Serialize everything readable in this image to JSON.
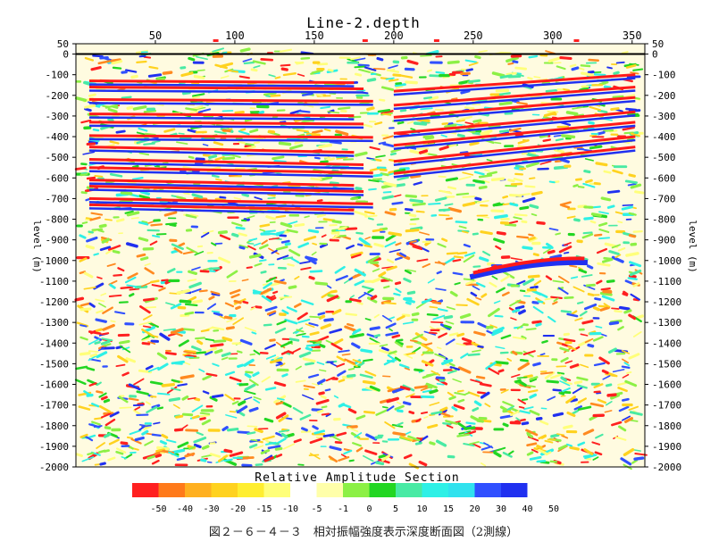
{
  "chart_data": {
    "type": "heatmap",
    "title": "Line-2.depth",
    "ylabel": "level (m)",
    "section_label": "Relative Amplitude Section",
    "caption": "図２－６－４－３　相対振幅強度表示深度断面図（2測線）",
    "x_ticks": [
      "50",
      "100",
      "150",
      "200",
      "250",
      "300",
      "350"
    ],
    "x_range": [
      0,
      358
    ],
    "y_ticks": [
      "50",
      "0",
      "-100",
      "-200",
      "-300",
      "-400",
      "-500",
      "-600",
      "-700",
      "-800",
      "-900",
      "-1000",
      "-1100",
      "-1200",
      "-1300",
      "-1400",
      "-1500",
      "-1600",
      "-1700",
      "-1800",
      "-1900",
      "-2000"
    ],
    "y_range": [
      50,
      -2000
    ],
    "markers_x": [
      88,
      182,
      227,
      315
    ],
    "colorbar": {
      "labels": [
        "-50",
        "-40",
        "-30",
        "-20",
        "-15",
        "-10",
        "-5",
        "-1",
        "0",
        "5",
        "10",
        "15",
        "20",
        "30",
        "40",
        "50"
      ],
      "colors": [
        "#ff2020",
        "#ff7a1a",
        "#ffb020",
        "#ffd21f",
        "#ffee30",
        "#ffff7a",
        "#ffffff",
        "#ffffaa",
        "#8cf045",
        "#22d622",
        "#48eaa4",
        "#2ef0e6",
        "#30e2ee",
        "#3050ff",
        "#2030f0"
      ]
    },
    "grid": false
  }
}
